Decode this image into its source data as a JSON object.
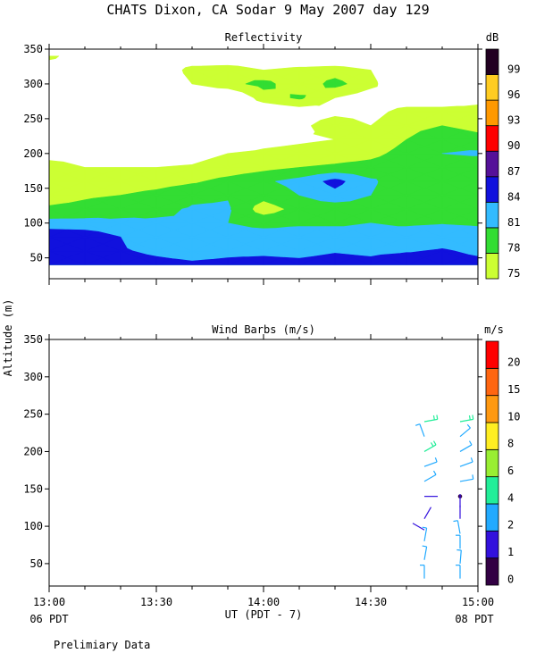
{
  "figure": {
    "title": "CHATS Dixon, CA  Sodar   9 May 2007  day 129",
    "ylabel": "Altitude (m)",
    "xlabel": "UT  (PDT - 7)",
    "x_left_note": "06 PDT",
    "x_right_note": "08 PDT",
    "footer": "Prelimiary Data"
  },
  "colors": {
    "reflectivity_scale": [
      "#ccff33",
      "#33dd33",
      "#33bbff",
      "#1111dd",
      "#551199",
      "#ff0000",
      "#ff9900",
      "#ffcc22",
      "#220022"
    ],
    "wind_scale": [
      "#330044",
      "#3311dd",
      "#22aaff",
      "#22ee99",
      "#99ee33",
      "#ffee22",
      "#ff9911",
      "#ff6611",
      "#ff0000"
    ]
  },
  "chart_data": [
    {
      "type": "heatmap",
      "title": "Reflectivity",
      "unit": "dB",
      "ylim": [
        20,
        350
      ],
      "yticks": [
        50,
        100,
        150,
        200,
        250,
        300,
        350
      ],
      "xlim": [
        "13:00",
        "15:00"
      ],
      "xticks": [
        "13:00",
        "13:30",
        "14:00",
        "14:30",
        "15:00"
      ],
      "colorbar_labels": [
        "75",
        "78",
        "81",
        "84",
        "87",
        "90",
        "93",
        "96",
        "99"
      ],
      "x": [
        "13:00",
        "13:10",
        "13:20",
        "13:30",
        "13:40",
        "13:50",
        "14:00",
        "14:10",
        "14:20",
        "14:30",
        "14:40",
        "14:50",
        "15:00"
      ],
      "y": [
        40,
        60,
        80,
        100,
        120,
        140,
        160,
        180,
        200,
        220,
        240,
        260,
        280,
        300,
        320,
        340
      ],
      "z": [
        [
          86,
          85.5,
          85,
          84.6,
          84.3,
          84.5,
          84.8,
          84.6,
          85,
          84.7,
          85.5,
          85,
          84.6
        ],
        [
          85,
          84.8,
          84.2,
          83.6,
          83.2,
          83.5,
          83.5,
          83.3,
          83.8,
          83.5,
          83.8,
          84.2,
          83.6
        ],
        [
          86.5,
          86,
          84,
          82.8,
          82.3,
          82.5,
          82.5,
          82.5,
          82.5,
          82,
          82.5,
          83,
          82.5
        ],
        [
          82,
          82,
          81.5,
          81.3,
          81,
          81,
          80,
          80.5,
          80.5,
          81,
          80.5,
          80.8,
          80.5
        ],
        [
          78.5,
          79,
          80,
          80.5,
          81.2,
          81.3,
          76.5,
          79,
          79,
          79.5,
          80,
          79.5,
          79.5
        ],
        [
          76.5,
          77.5,
          78,
          79,
          80.5,
          80.8,
          79,
          81,
          83,
          81,
          79,
          78,
          78
        ],
        [
          75.5,
          75.5,
          76,
          76.5,
          77.5,
          79,
          80.5,
          82,
          85,
          81.5,
          79,
          78,
          78
        ],
        [
          75.5,
          75,
          75,
          75,
          75.2,
          76,
          77,
          78,
          78.5,
          79,
          80,
          79,
          78.5
        ],
        [
          74.5,
          74.5,
          74,
          74,
          74.2,
          75,
          75.5,
          76,
          76.5,
          77.2,
          79,
          81,
          81.5
        ],
        [
          74,
          73.5,
          73,
          73,
          73,
          73,
          74,
          74.5,
          75,
          76,
          78,
          80,
          79
        ],
        [
          73,
          73,
          72,
          72,
          72,
          72,
          73,
          74,
          77,
          75,
          77,
          78,
          77
        ],
        [
          72,
          72,
          71,
          71,
          71,
          71,
          72,
          73,
          74,
          74,
          76,
          76,
          76
        ],
        [
          71,
          71,
          71,
          71,
          71,
          71,
          76.5,
          78.5,
          75,
          73,
          73,
          73,
          74
        ],
        [
          71,
          71,
          71,
          71,
          75,
          77,
          79,
          76,
          79,
          76,
          71,
          71,
          75
        ],
        [
          71,
          71,
          71,
          71,
          76.5,
          77,
          75,
          76,
          76.5,
          75,
          71,
          71,
          74
        ],
        [
          76.5,
          71,
          71,
          71,
          71,
          71,
          71,
          71,
          71,
          71,
          71,
          71,
          72
        ]
      ]
    },
    {
      "type": "scatter",
      "title": "Wind Barbs (m/s)",
      "unit": "m/s",
      "ylim": [
        20,
        350
      ],
      "yticks": [
        50,
        100,
        150,
        200,
        250,
        300,
        350
      ],
      "xlim": [
        "13:00",
        "15:00"
      ],
      "xticks": [
        "13:00",
        "13:30",
        "14:00",
        "14:30",
        "15:00"
      ],
      "colorbar_labels": [
        "0",
        "1",
        "2",
        "4",
        "6",
        "8",
        "10",
        "15",
        "20"
      ],
      "barbs": [
        {
          "time": "14:45",
          "alt": 240,
          "speed": 4,
          "dir": 80
        },
        {
          "time": "14:45",
          "alt": 220,
          "speed": 2,
          "dir": 340
        },
        {
          "time": "14:45",
          "alt": 200,
          "speed": 4,
          "dir": 60
        },
        {
          "time": "14:45",
          "alt": 180,
          "speed": 2,
          "dir": 70
        },
        {
          "time": "14:45",
          "alt": 160,
          "speed": 2,
          "dir": 60
        },
        {
          "time": "14:45",
          "alt": 140,
          "speed": 1,
          "dir": 90
        },
        {
          "time": "14:45",
          "alt": 110,
          "speed": 1,
          "dir": 30
        },
        {
          "time": "14:45",
          "alt": 95,
          "speed": 1,
          "dir": 300
        },
        {
          "time": "14:45",
          "alt": 80,
          "speed": 2,
          "dir": 10
        },
        {
          "time": "14:45",
          "alt": 55,
          "speed": 2,
          "dir": 10
        },
        {
          "time": "14:45",
          "alt": 30,
          "speed": 2,
          "dir": 0
        },
        {
          "time": "14:55",
          "alt": 240,
          "speed": 4,
          "dir": 80
        },
        {
          "time": "14:55",
          "alt": 220,
          "speed": 2,
          "dir": 50
        },
        {
          "time": "14:55",
          "alt": 200,
          "speed": 2,
          "dir": 60
        },
        {
          "time": "14:55",
          "alt": 180,
          "speed": 2,
          "dir": 70
        },
        {
          "time": "14:55",
          "alt": 160,
          "speed": 2,
          "dir": 80
        },
        {
          "time": "14:55",
          "alt": 140,
          "speed": 0,
          "dir": 0
        },
        {
          "time": "14:55",
          "alt": 125,
          "speed": 1,
          "dir": 0
        },
        {
          "time": "14:55",
          "alt": 110,
          "speed": 1,
          "dir": 0
        },
        {
          "time": "14:55",
          "alt": 90,
          "speed": 2,
          "dir": 350
        },
        {
          "time": "14:55",
          "alt": 70,
          "speed": 2,
          "dir": 0
        },
        {
          "time": "14:55",
          "alt": 50,
          "speed": 2,
          "dir": 5
        },
        {
          "time": "14:55",
          "alt": 30,
          "speed": 2,
          "dir": 0
        }
      ]
    }
  ]
}
